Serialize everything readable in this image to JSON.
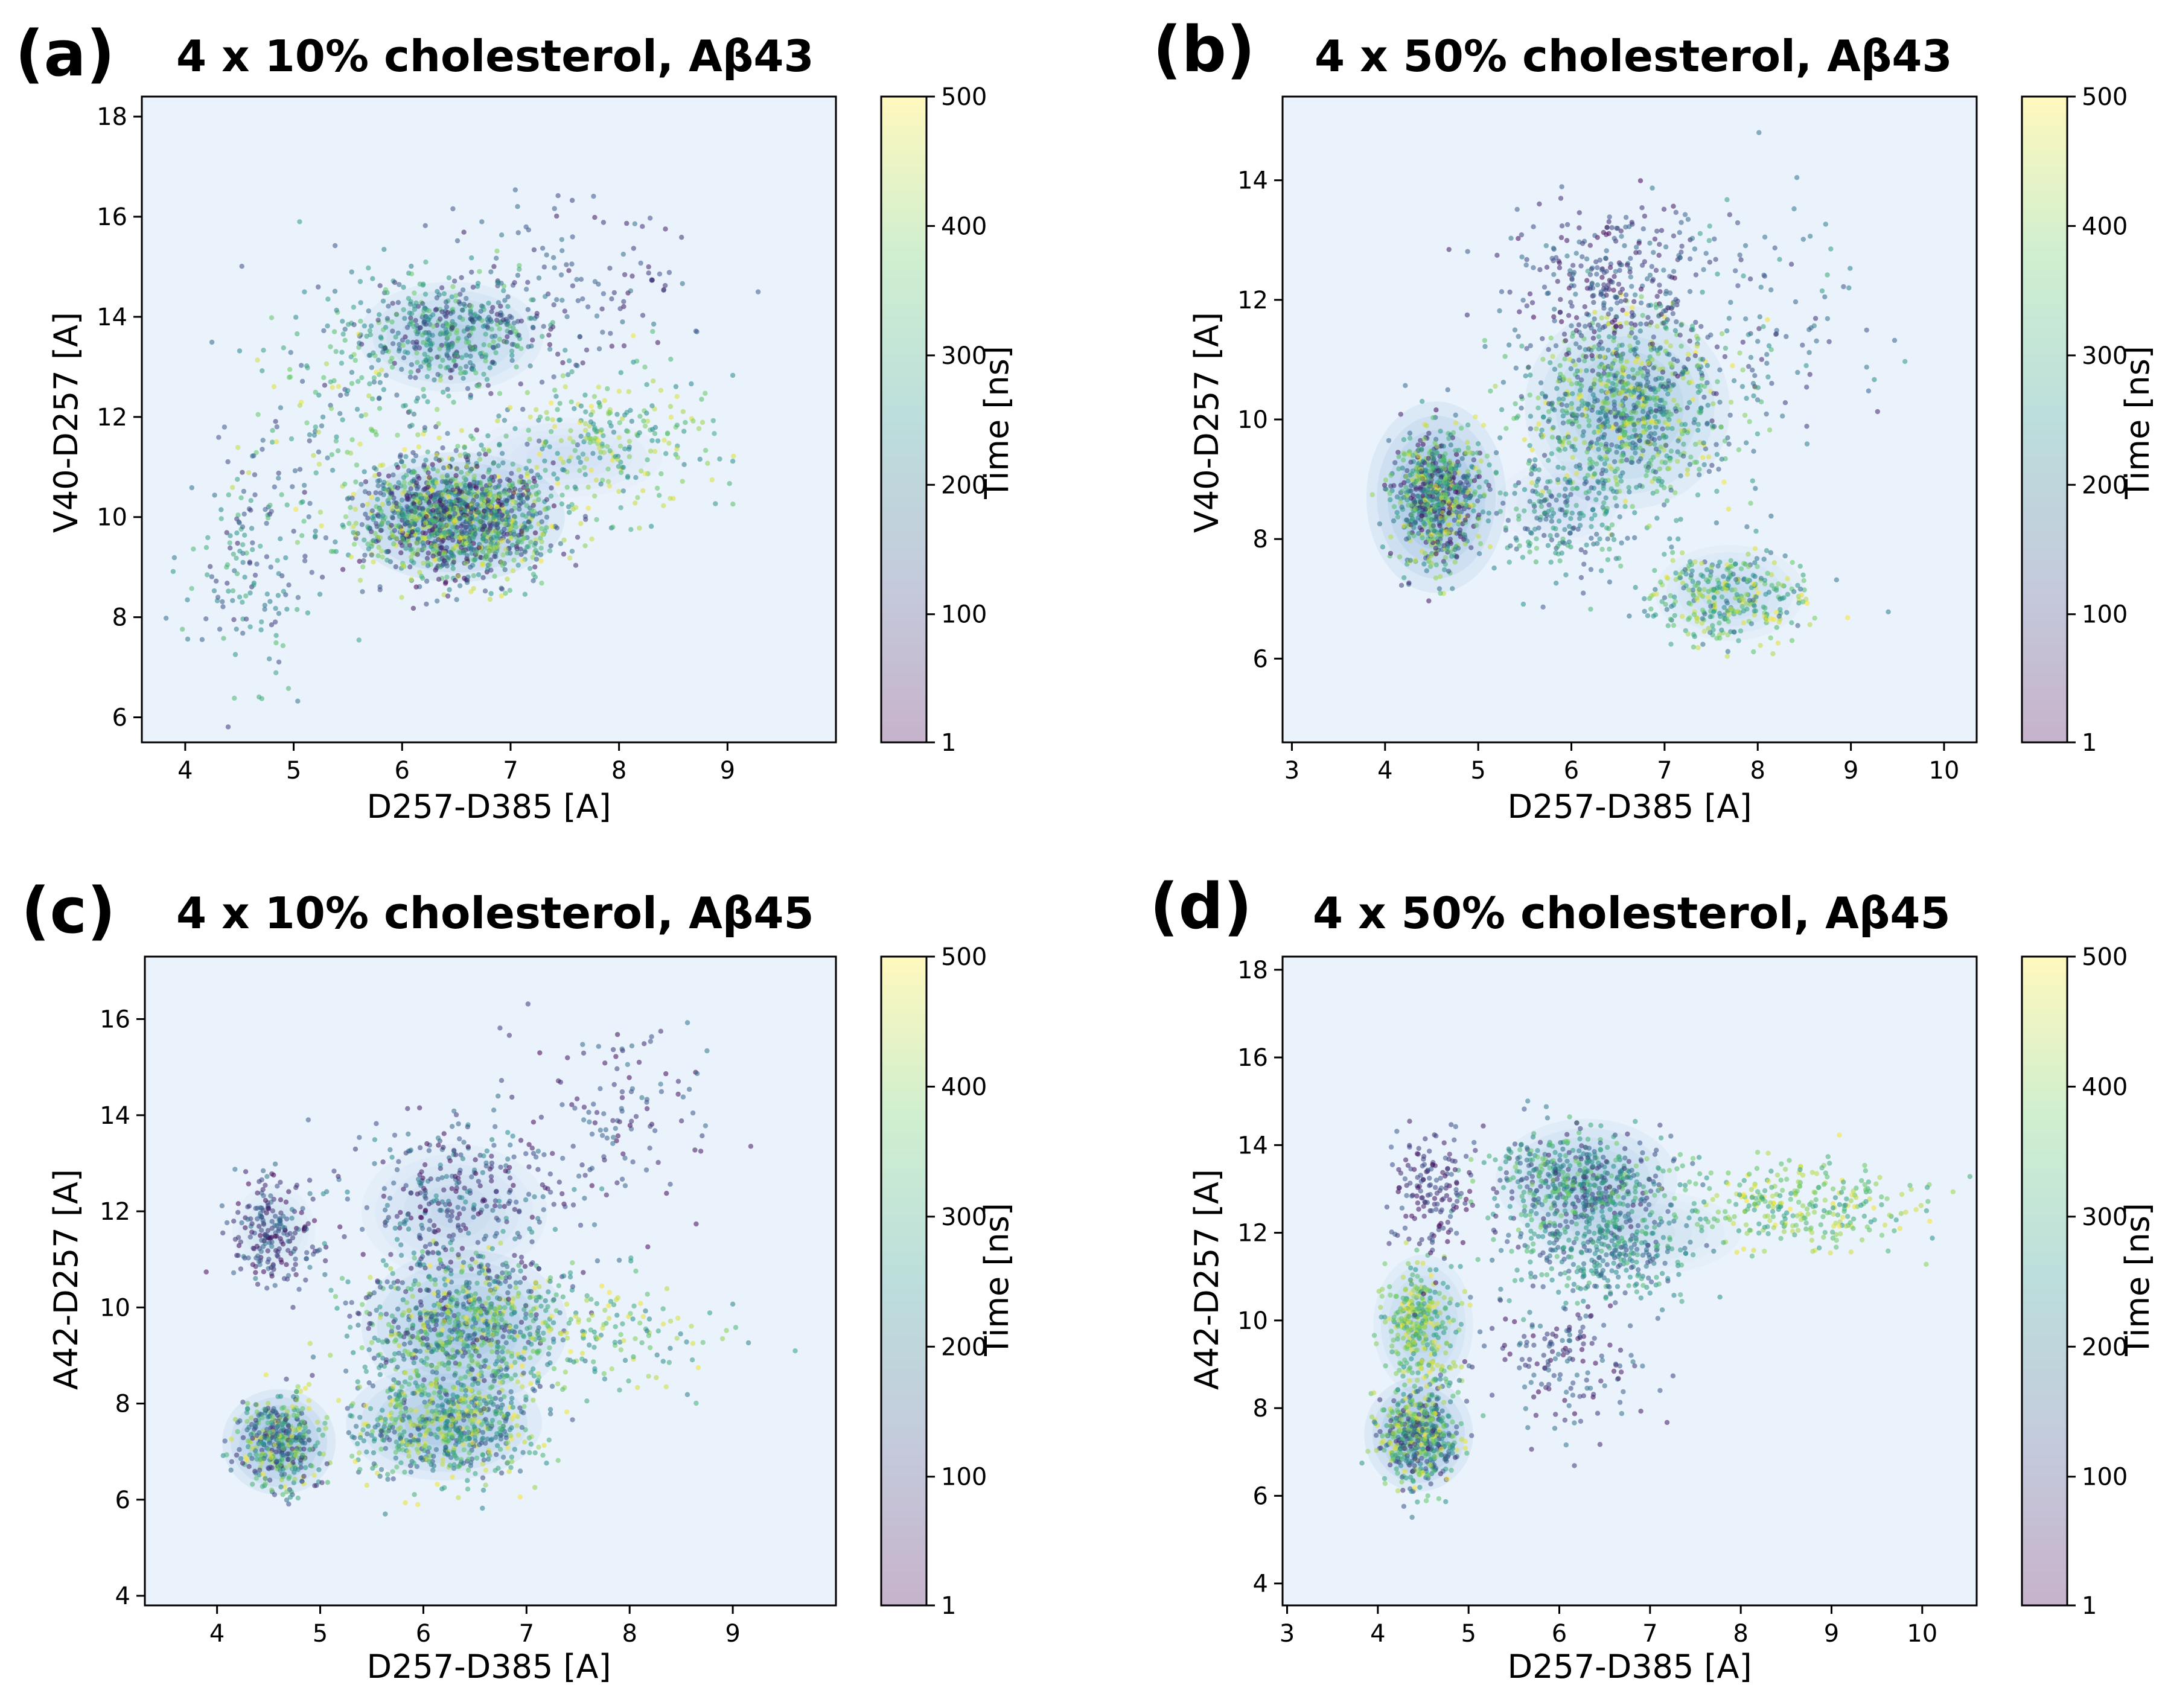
{
  "figure": {
    "colorbar_label": "Time [ns]",
    "colorbar_ticks": [
      1,
      100,
      200,
      300,
      400,
      500
    ],
    "colors": {
      "plot_background": "#eaf2fb",
      "density_fill": "#1f77b4",
      "colormap": [
        "#440154",
        "#3b528b",
        "#21918c",
        "#5ec962",
        "#fde725"
      ]
    }
  },
  "chart_data": [
    {
      "id": "a",
      "panel_label": "(a)",
      "type": "scatter",
      "title": "4 x 10% cholesterol, Aβ43",
      "xlabel": "D257-D385 [A]",
      "ylabel": "V40-D257 [A]",
      "xlim": [
        3.6,
        10.0
      ],
      "ylim": [
        5.5,
        18.4
      ],
      "xticks": [
        4,
        5,
        6,
        7,
        8,
        9
      ],
      "yticks": [
        6,
        8,
        10,
        12,
        14,
        16,
        18
      ],
      "clusters": [
        {
          "cx": 6.5,
          "cy": 10.0,
          "sx": 0.45,
          "sy": 0.6,
          "weight": 0.55,
          "tmin": 0,
          "tmax": 1
        },
        {
          "cx": 6.4,
          "cy": 13.7,
          "sx": 0.5,
          "sy": 0.6,
          "weight": 0.18,
          "tmin": 0.1,
          "tmax": 0.8
        },
        {
          "cx": 7.9,
          "cy": 11.5,
          "sx": 0.55,
          "sy": 0.7,
          "weight": 0.1,
          "tmin": 0.4,
          "tmax": 1
        },
        {
          "cx": 4.6,
          "cy": 9.0,
          "sx": 0.25,
          "sy": 1.2,
          "weight": 0.06,
          "tmin": 0.1,
          "tmax": 0.7
        },
        {
          "cx": 7.5,
          "cy": 14.5,
          "sx": 0.6,
          "sy": 0.9,
          "weight": 0.05,
          "tmin": 0.05,
          "tmax": 0.4
        },
        {
          "cx": 5.5,
          "cy": 12.0,
          "sx": 0.5,
          "sy": 1.3,
          "weight": 0.06,
          "tmin": 0.2,
          "tmax": 1
        }
      ],
      "density": [
        {
          "cx": 6.5,
          "cy": 10.0,
          "rx": 1.0,
          "ry": 1.3,
          "w": 1.0
        },
        {
          "cx": 6.45,
          "cy": 13.6,
          "rx": 0.85,
          "ry": 1.1,
          "w": 0.6
        },
        {
          "cx": 7.5,
          "cy": 11.2,
          "rx": 0.9,
          "ry": 0.8,
          "w": 0.3
        }
      ]
    },
    {
      "id": "b",
      "panel_label": "(b)",
      "type": "scatter",
      "title": "4 x 50% cholesterol, Aβ43",
      "xlabel": "D257-D385 [A]",
      "ylabel": "V40-D257 [A]",
      "xlim": [
        2.9,
        10.35
      ],
      "ylim": [
        4.6,
        15.4
      ],
      "xticks": [
        3,
        4,
        5,
        6,
        7,
        8,
        9,
        10
      ],
      "yticks": [
        6,
        8,
        10,
        12,
        14
      ],
      "clusters": [
        {
          "cx": 4.55,
          "cy": 8.7,
          "sx": 0.22,
          "sy": 0.55,
          "weight": 0.28,
          "tmin": 0,
          "tmax": 1
        },
        {
          "cx": 6.6,
          "cy": 10.2,
          "sx": 0.55,
          "sy": 0.8,
          "weight": 0.34,
          "tmin": 0.2,
          "tmax": 1
        },
        {
          "cx": 6.4,
          "cy": 12.2,
          "sx": 0.5,
          "sy": 0.7,
          "weight": 0.12,
          "tmin": 0,
          "tmax": 0.4
        },
        {
          "cx": 7.7,
          "cy": 7.0,
          "sx": 0.45,
          "sy": 0.4,
          "weight": 0.13,
          "tmin": 0.3,
          "tmax": 1
        },
        {
          "cx": 5.9,
          "cy": 8.4,
          "sx": 0.4,
          "sy": 0.5,
          "weight": 0.08,
          "tmin": 0.2,
          "tmax": 0.7
        },
        {
          "cx": 7.9,
          "cy": 11.5,
          "sx": 0.6,
          "sy": 1.0,
          "weight": 0.05,
          "tmin": 0.1,
          "tmax": 0.6
        }
      ],
      "density": [
        {
          "cx": 4.55,
          "cy": 8.7,
          "rx": 0.75,
          "ry": 1.6,
          "w": 1.0
        },
        {
          "cx": 6.6,
          "cy": 10.2,
          "rx": 1.1,
          "ry": 1.7,
          "w": 0.75
        },
        {
          "cx": 7.7,
          "cy": 7.1,
          "rx": 0.8,
          "ry": 0.8,
          "w": 0.45
        },
        {
          "cx": 5.9,
          "cy": 8.6,
          "rx": 0.7,
          "ry": 0.7,
          "w": 0.25
        }
      ]
    },
    {
      "id": "c",
      "panel_label": "(c)",
      "type": "scatter",
      "title": "4 x 10% cholesterol, Aβ45",
      "xlabel": "D257-D385 [A]",
      "ylabel": "A42-D257 [A]",
      "xlim": [
        3.3,
        10.0
      ],
      "ylim": [
        3.8,
        17.3
      ],
      "xticks": [
        4,
        5,
        6,
        7,
        8,
        9
      ],
      "yticks": [
        4,
        6,
        8,
        10,
        12,
        14,
        16
      ],
      "clusters": [
        {
          "cx": 4.6,
          "cy": 7.2,
          "sx": 0.2,
          "sy": 0.5,
          "weight": 0.15,
          "tmin": 0.1,
          "tmax": 1
        },
        {
          "cx": 4.55,
          "cy": 11.6,
          "sx": 0.2,
          "sy": 0.55,
          "weight": 0.08,
          "tmin": 0,
          "tmax": 0.4
        },
        {
          "cx": 6.4,
          "cy": 9.6,
          "sx": 0.5,
          "sy": 0.8,
          "weight": 0.3,
          "tmin": 0.1,
          "tmax": 1
        },
        {
          "cx": 6.2,
          "cy": 7.6,
          "sx": 0.45,
          "sy": 0.6,
          "weight": 0.25,
          "tmin": 0.2,
          "tmax": 1
        },
        {
          "cx": 6.3,
          "cy": 12.3,
          "sx": 0.5,
          "sy": 0.8,
          "weight": 0.12,
          "tmin": 0,
          "tmax": 0.5
        },
        {
          "cx": 7.8,
          "cy": 13.8,
          "sx": 0.6,
          "sy": 1.0,
          "weight": 0.05,
          "tmin": 0,
          "tmax": 0.4
        },
        {
          "cx": 7.8,
          "cy": 9.5,
          "sx": 0.6,
          "sy": 0.6,
          "weight": 0.05,
          "tmin": 0.4,
          "tmax": 1
        }
      ],
      "density": [
        {
          "cx": 4.6,
          "cy": 7.2,
          "rx": 0.55,
          "ry": 1.1,
          "w": 1.0
        },
        {
          "cx": 4.55,
          "cy": 11.6,
          "rx": 0.4,
          "ry": 0.95,
          "w": 0.35
        },
        {
          "cx": 6.4,
          "cy": 9.6,
          "rx": 1.0,
          "ry": 1.6,
          "w": 0.85
        },
        {
          "cx": 6.2,
          "cy": 7.6,
          "rx": 0.95,
          "ry": 1.2,
          "w": 0.85
        },
        {
          "cx": 6.3,
          "cy": 12.0,
          "rx": 0.9,
          "ry": 1.4,
          "w": 0.4
        }
      ]
    },
    {
      "id": "d",
      "panel_label": "(d)",
      "type": "scatter",
      "title": "4 x 50% cholesterol, Aβ45",
      "xlabel": "D257-D385 [A]",
      "ylabel": "A42-D257 [A]",
      "xlim": [
        2.95,
        10.6
      ],
      "ylim": [
        3.5,
        18.3
      ],
      "xticks": [
        3,
        4,
        5,
        6,
        7,
        8,
        9,
        10
      ],
      "yticks": [
        4,
        6,
        8,
        10,
        12,
        14,
        16,
        18
      ],
      "clusters": [
        {
          "cx": 4.45,
          "cy": 7.4,
          "sx": 0.22,
          "sy": 0.55,
          "weight": 0.2,
          "tmin": 0.1,
          "tmax": 1
        },
        {
          "cx": 4.45,
          "cy": 9.9,
          "sx": 0.2,
          "sy": 0.7,
          "weight": 0.12,
          "tmin": 0.5,
          "tmax": 1
        },
        {
          "cx": 6.2,
          "cy": 13.2,
          "sx": 0.5,
          "sy": 0.6,
          "weight": 0.2,
          "tmin": 0.1,
          "tmax": 0.8
        },
        {
          "cx": 6.5,
          "cy": 11.6,
          "sx": 0.5,
          "sy": 0.6,
          "weight": 0.14,
          "tmin": 0.2,
          "tmax": 0.7
        },
        {
          "cx": 8.6,
          "cy": 12.6,
          "sx": 0.7,
          "sy": 0.5,
          "weight": 0.12,
          "tmin": 0.5,
          "tmax": 1
        },
        {
          "cx": 4.6,
          "cy": 13.0,
          "sx": 0.25,
          "sy": 0.7,
          "weight": 0.06,
          "tmin": 0,
          "tmax": 0.3
        },
        {
          "cx": 6.0,
          "cy": 9.0,
          "sx": 0.5,
          "sy": 0.8,
          "weight": 0.06,
          "tmin": 0,
          "tmax": 0.4
        }
      ],
      "density": [
        {
          "cx": 4.45,
          "cy": 7.4,
          "rx": 0.6,
          "ry": 1.3,
          "w": 1.0
        },
        {
          "cx": 4.5,
          "cy": 9.9,
          "rx": 0.55,
          "ry": 1.6,
          "w": 0.6
        },
        {
          "cx": 6.3,
          "cy": 13.2,
          "rx": 1.0,
          "ry": 1.4,
          "w": 0.6
        },
        {
          "cx": 6.8,
          "cy": 12.0,
          "rx": 1.2,
          "ry": 1.0,
          "w": 0.35
        }
      ]
    }
  ]
}
